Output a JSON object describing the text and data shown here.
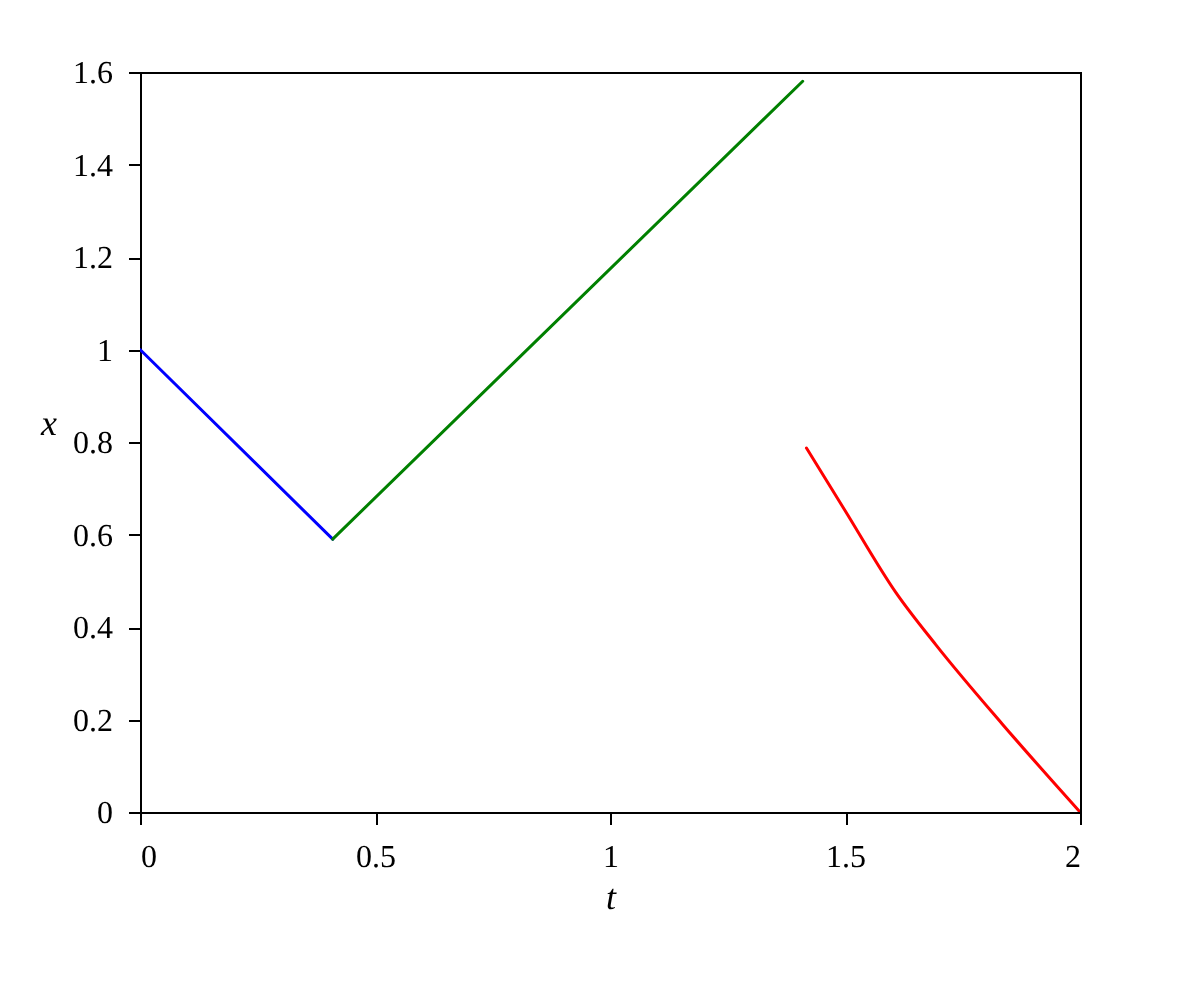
{
  "chart_data": {
    "type": "line",
    "xlabel": "t",
    "ylabel": "x",
    "xlim": [
      0,
      2
    ],
    "ylim": [
      0,
      1.6
    ],
    "xticks": [
      0,
      0.5,
      1,
      1.5,
      2
    ],
    "yticks": [
      0,
      0.2,
      0.4,
      0.6,
      0.8,
      1,
      1.2,
      1.4,
      1.6
    ],
    "grid": false,
    "series": [
      {
        "color": "#0000ff",
        "x": [
          0,
          0.41
        ],
        "values": [
          1.0,
          0.59
        ]
      },
      {
        "color": "#008000",
        "x": [
          0.41,
          1.41
        ],
        "values": [
          0.59,
          1.58
        ]
      },
      {
        "color": "#ff0000",
        "x": [
          1.418,
          1.5,
          1.608,
          1.693,
          1.834,
          2
        ],
        "values": [
          0.787,
          0.652,
          0.475,
          0.362,
          0.191,
          0
        ]
      }
    ]
  }
}
